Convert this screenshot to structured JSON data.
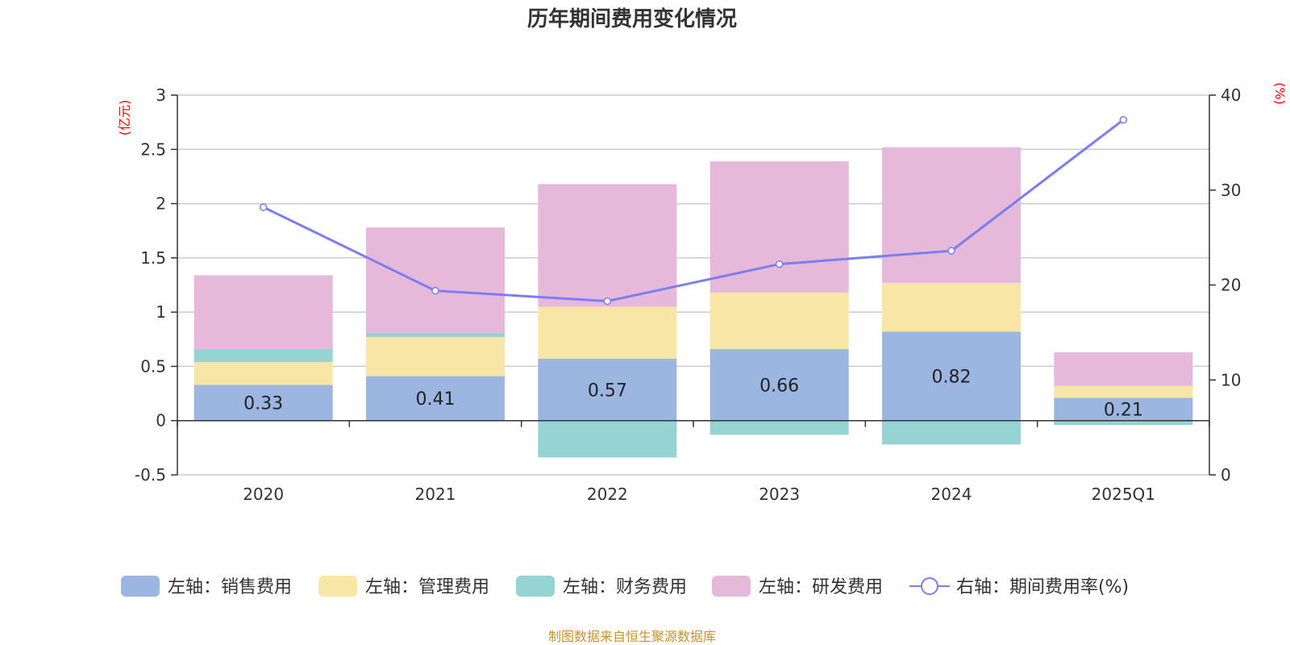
{
  "chart_data": {
    "type": "bar",
    "title": "历年期间费用变化情况",
    "categories": [
      "2020",
      "2021",
      "2022",
      "2023",
      "2024",
      "2025Q1"
    ],
    "left_axis": {
      "unit": "(亿元)",
      "ylim": [
        -0.5,
        3
      ],
      "ticks": [
        "3",
        "2.5",
        "2",
        "1.5",
        "1",
        "0.5",
        "0",
        "-0.5"
      ],
      "tick_values": [
        3,
        2.5,
        2,
        1.5,
        1,
        0.5,
        0,
        -0.5
      ]
    },
    "right_axis": {
      "unit": "(%)",
      "ylim": [
        0,
        40
      ],
      "ticks": [
        "40",
        "30",
        "20",
        "10",
        "0"
      ],
      "tick_values": [
        40,
        30,
        20,
        10,
        0
      ]
    },
    "stacked": true,
    "series": [
      {
        "name": "左轴：销售费用",
        "axis": "left",
        "color": "#9bb6e0",
        "values": [
          0.33,
          0.41,
          0.57,
          0.66,
          0.82,
          0.21
        ],
        "data_labels": [
          "0.33",
          "0.41",
          "0.57",
          "0.66",
          "0.82",
          "0.21"
        ]
      },
      {
        "name": "左轴：管理费用",
        "axis": "left",
        "color": "#f8e6a6",
        "values": [
          0.21,
          0.36,
          0.48,
          0.52,
          0.45,
          0.11
        ]
      },
      {
        "name": "左轴：财务费用",
        "axis": "left",
        "color": "#96d4d4",
        "values": [
          0.12,
          0.04,
          -0.34,
          -0.13,
          -0.22,
          -0.04
        ]
      },
      {
        "name": "左轴：研发费用",
        "axis": "left",
        "color": "#e6b9da",
        "values": [
          0.68,
          0.97,
          1.13,
          1.21,
          1.25,
          0.31
        ]
      },
      {
        "name": "右轴：期间费用率(%)",
        "axis": "right",
        "type": "line",
        "color": "#7b7ef0",
        "values": [
          28.2,
          19.4,
          18.3,
          22.2,
          23.6,
          37.4
        ]
      }
    ],
    "grid": true,
    "legend_position": "bottom"
  },
  "footer": {
    "source": "制图数据来自恒生聚源数据库"
  }
}
